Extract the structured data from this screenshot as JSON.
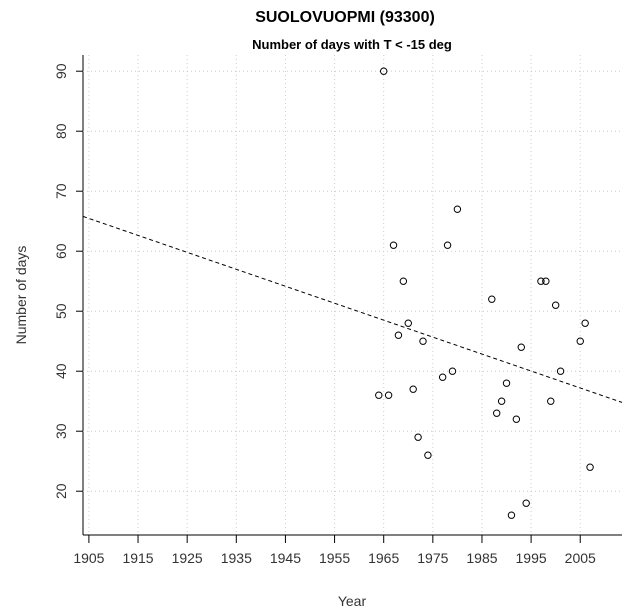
{
  "chart_data": {
    "type": "scatter",
    "title": "SUOLOVUOPMI (93300)",
    "subtitle": "Number of days with T < -15 deg",
    "x_label": "Year",
    "y_label": "Number of days",
    "xlim": [
      1903.8,
      2013.5
    ],
    "ylim": [
      12.7,
      92.7
    ],
    "xticks": [
      1905,
      1915,
      1925,
      1935,
      1945,
      1955,
      1965,
      1975,
      1985,
      1995,
      2005
    ],
    "yticks": [
      20,
      30,
      40,
      50,
      60,
      70,
      80,
      90
    ],
    "grid": true,
    "points": {
      "color": "#000000",
      "x": [
        1965,
        1964,
        1966,
        1967,
        1968,
        1969,
        1970,
        1971,
        1972,
        1973,
        1974,
        1977,
        1978,
        1979,
        1980,
        1987,
        1988,
        1989,
        1990,
        1991,
        1992,
        1993,
        1994,
        1997,
        1998,
        1999,
        2000,
        2001,
        2005,
        2006,
        2007
      ],
      "y": [
        90,
        36,
        36,
        61,
        46,
        55,
        48,
        37,
        29,
        45,
        26,
        39,
        61,
        40,
        67,
        52,
        33,
        35,
        38,
        16,
        32,
        44,
        18,
        55,
        55,
        35,
        51,
        40,
        45,
        48,
        24
      ]
    },
    "trend": {
      "color": "#000000",
      "x": [
        1903.8,
        2013.5
      ],
      "y": [
        65.8,
        34.8
      ]
    }
  }
}
